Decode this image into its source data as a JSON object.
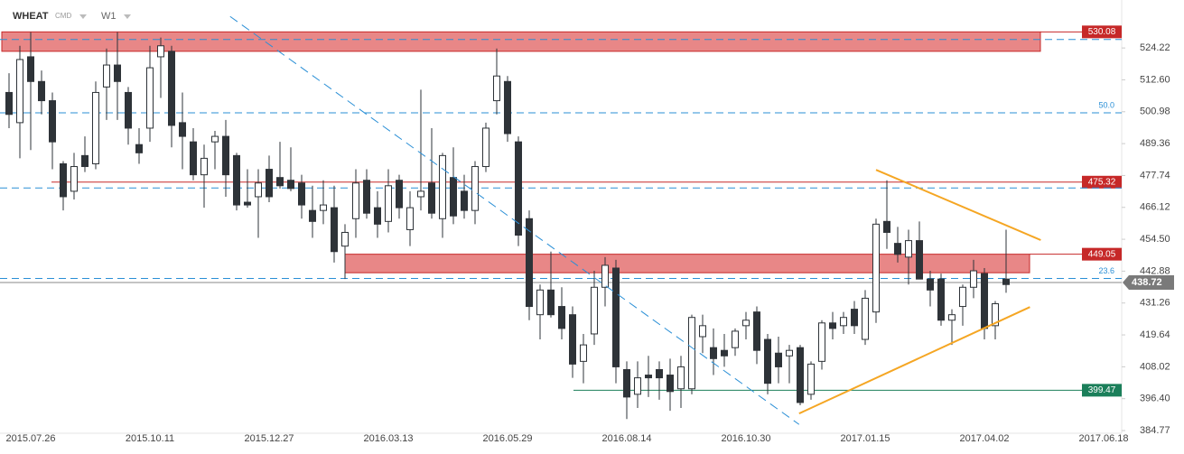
{
  "header": {
    "symbol": "WHEAT",
    "market": "CMD",
    "timeframe": "W1"
  },
  "chart_data": {
    "type": "candlestick",
    "categories": [
      null,
      null,
      "2015.07.26",
      null,
      null,
      null,
      null,
      null,
      null,
      null,
      null,
      null,
      null,
      "2015.10.11",
      null,
      null,
      null,
      null,
      null,
      null,
      null,
      null,
      null,
      null,
      "2015.12.27",
      null,
      null,
      null,
      null,
      null,
      null,
      null,
      null,
      null,
      null,
      "2016.03.13",
      null,
      null,
      null,
      null,
      null,
      null,
      null,
      null,
      null,
      null,
      "2016.05.29",
      null,
      null,
      null,
      null,
      null,
      null,
      null,
      null,
      null,
      null,
      "2016.08.14",
      null,
      null,
      null,
      null,
      null,
      null,
      null,
      null,
      null,
      null,
      "2016.10.30",
      null,
      null,
      null,
      null,
      null,
      null,
      null,
      null,
      null,
      null,
      "2017.01.15",
      null,
      null,
      null,
      null,
      null,
      null,
      null,
      null,
      null,
      null,
      "2017.04.02",
      null,
      null,
      null,
      null,
      null,
      null,
      null,
      null,
      null,
      null,
      "2017.06.18"
    ],
    "ohlc": [
      [
        508,
        515,
        495,
        500
      ],
      [
        497,
        525,
        484,
        520
      ],
      [
        521,
        530,
        487,
        512
      ],
      [
        512,
        516,
        500,
        505
      ],
      [
        505,
        508,
        480,
        490
      ],
      [
        482,
        483,
        465,
        470
      ],
      [
        472,
        486,
        469,
        481
      ],
      [
        485,
        492,
        479,
        481
      ],
      [
        482,
        512,
        480,
        508
      ],
      [
        510,
        524,
        498,
        518
      ],
      [
        518,
        530,
        498,
        512
      ],
      [
        508,
        510,
        489,
        495
      ],
      [
        489,
        495,
        482,
        486
      ],
      [
        495,
        525,
        490,
        517
      ],
      [
        521,
        528,
        506,
        525
      ],
      [
        523,
        525,
        488,
        496
      ],
      [
        497,
        508,
        480,
        492
      ],
      [
        490,
        495,
        476,
        478
      ],
      [
        478,
        489,
        466,
        484
      ],
      [
        490,
        494,
        480,
        492
      ],
      [
        492,
        498,
        470,
        478
      ],
      [
        485,
        486,
        465,
        467
      ],
      [
        468,
        480,
        466,
        467
      ],
      [
        470,
        480,
        455,
        475
      ],
      [
        480,
        485,
        468,
        470
      ],
      [
        477,
        490,
        473,
        474
      ],
      [
        476,
        488,
        472,
        473
      ],
      [
        475,
        478,
        462,
        467
      ],
      [
        465,
        474,
        455,
        461
      ],
      [
        465,
        476,
        460,
        467
      ],
      [
        466,
        474,
        446,
        450
      ],
      [
        452,
        460,
        440,
        457
      ],
      [
        462,
        480,
        455,
        475
      ],
      [
        476,
        480,
        462,
        464
      ],
      [
        466,
        472,
        455,
        460
      ],
      [
        461,
        480,
        457,
        474
      ],
      [
        476,
        478,
        462,
        466
      ],
      [
        458,
        472,
        452,
        466
      ],
      [
        470,
        509,
        465,
        472
      ],
      [
        475,
        495,
        462,
        464
      ],
      [
        462,
        486,
        455,
        485
      ],
      [
        477,
        488,
        460,
        463
      ],
      [
        472,
        478,
        462,
        465
      ],
      [
        465,
        483,
        460,
        481
      ],
      [
        481,
        497,
        479,
        495
      ],
      [
        505,
        524,
        500,
        514
      ],
      [
        512,
        514,
        490,
        493
      ],
      [
        490,
        492,
        452,
        456
      ],
      [
        462,
        465,
        425,
        430
      ],
      [
        427,
        438,
        418,
        436
      ],
      [
        436,
        450,
        426,
        427
      ],
      [
        430,
        437,
        418,
        422
      ],
      [
        427,
        430,
        404,
        409
      ],
      [
        410,
        420,
        402,
        416
      ],
      [
        420,
        443,
        416,
        437
      ],
      [
        437,
        448,
        430,
        445
      ],
      [
        444,
        447,
        402,
        408
      ],
      [
        407,
        410,
        389,
        397
      ],
      [
        398,
        410,
        393,
        404
      ],
      [
        405,
        412,
        397,
        404
      ],
      [
        407,
        410,
        396,
        404
      ],
      [
        405,
        411,
        392,
        399
      ],
      [
        400,
        412,
        393,
        408
      ],
      [
        400,
        427,
        398,
        426
      ],
      [
        419,
        427,
        413,
        423
      ],
      [
        415,
        422,
        405,
        411
      ],
      [
        414,
        420,
        408,
        412
      ],
      [
        415,
        422,
        412,
        421
      ],
      [
        423,
        428,
        418,
        425
      ],
      [
        428,
        430,
        409,
        414
      ],
      [
        418,
        420,
        398,
        402
      ],
      [
        413,
        419,
        402,
        408
      ],
      [
        412,
        416,
        402,
        414
      ],
      [
        415,
        416,
        394,
        395
      ],
      [
        398,
        410,
        396,
        409
      ],
      [
        410,
        425,
        407,
        424
      ],
      [
        424,
        428,
        418,
        422
      ],
      [
        423,
        428,
        420,
        426
      ],
      [
        429,
        432,
        420,
        423
      ],
      [
        418,
        436,
        416,
        433
      ],
      [
        428,
        462,
        424,
        460
      ],
      [
        461,
        476,
        451,
        457
      ],
      [
        453,
        459,
        446,
        449
      ],
      [
        448,
        458,
        438,
        454
      ],
      [
        454,
        461,
        442,
        440
      ],
      [
        440,
        443,
        430,
        436
      ],
      [
        440,
        442,
        423,
        425
      ],
      [
        425,
        429,
        416,
        427
      ],
      [
        430,
        438,
        423,
        437
      ],
      [
        437,
        447,
        433,
        443
      ],
      [
        442,
        444,
        418,
        422
      ],
      [
        423,
        432,
        418,
        431
      ],
      [
        440,
        458,
        435,
        438
      ],
      null,
      null,
      null,
      null,
      null,
      null,
      null,
      null,
      null
    ],
    "ylim": [
      383.8,
      541.7
    ],
    "yticks": [
      524.22,
      {
        "value": 512.6,
        "label": "512.60"
      },
      500.98,
      489.36,
      477.74,
      466.12,
      {
        "value": 454.5,
        "label": "454.50"
      },
      442.88,
      431.26,
      419.64,
      408.02,
      {
        "value": 396.4,
        "label": "396.40"
      },
      384.77
    ],
    "zones": [
      {
        "low": 523,
        "high": 530.08
      },
      {
        "low": 442.3,
        "high": 449.05
      }
    ],
    "levels": [
      {
        "value": 475.32,
        "color": "#c62828"
      },
      {
        "value": 399.47,
        "color": "#1b7f5a"
      }
    ],
    "current_price": 438.72,
    "fib_lines": [
      {
        "value": 500.6,
        "label": "50.0"
      },
      {
        "value": 440.2,
        "label": "23.6"
      }
    ],
    "dashed_lines": [
      527.3,
      473.2
    ],
    "trendlines": [
      {
        "from": [
          20.4,
          535.7
        ],
        "to": [
          72.9,
          387
        ],
        "color": "#2a8fd6",
        "dashed": true
      },
      {
        "from": [
          80,
          479.8
        ],
        "to": [
          95.2,
          454.2
        ],
        "color": "#f5a623",
        "dashed": false
      },
      {
        "from": [
          72.9,
          391
        ],
        "to": [
          94.2,
          429.8
        ],
        "color": "#f5a623",
        "dashed": false
      }
    ],
    "up_color": "#ffffff",
    "down_color": "#2e3338"
  }
}
